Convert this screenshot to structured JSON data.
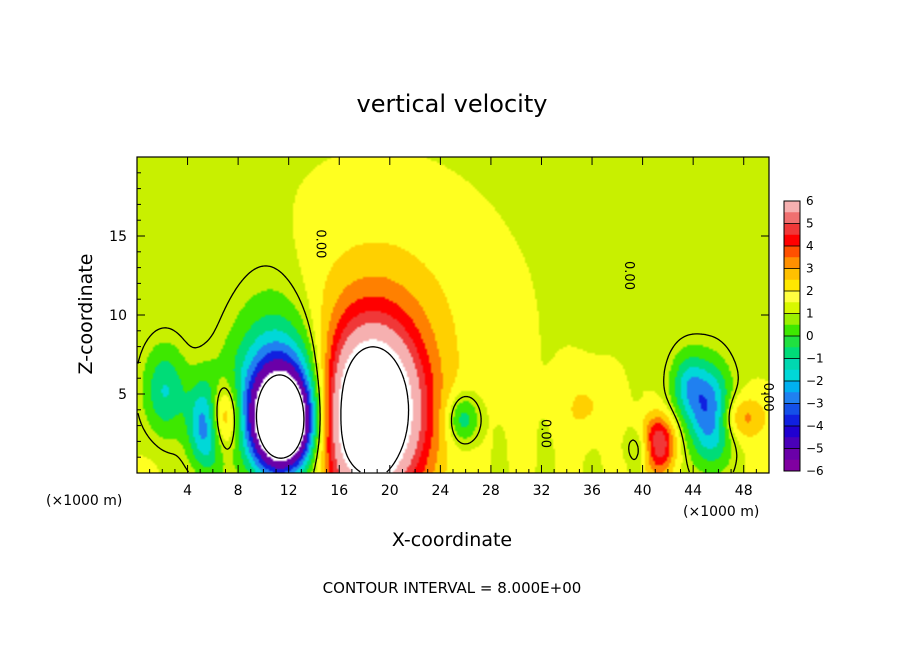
{
  "chart_data": {
    "type": "heatmap",
    "title": "vertical velocity",
    "xlabel": "X-coordinate",
    "ylabel": "Z-coordinate",
    "x_unit_left": "(×1000 m)",
    "x_unit_right": "(×1000 m)",
    "xlim": [
      0,
      50
    ],
    "ylim": [
      0,
      20
    ],
    "x_ticks": [
      4,
      8,
      12,
      16,
      20,
      24,
      28,
      32,
      36,
      40,
      44,
      48
    ],
    "y_ticks": [
      5,
      10,
      15
    ],
    "colorbar": {
      "ticks": [
        6,
        5,
        4,
        3,
        2,
        1,
        0,
        -1,
        -2,
        -3,
        -4,
        -5,
        -6
      ],
      "range": [
        -6,
        6
      ]
    },
    "contour_labels": [
      {
        "text": "0.00",
        "x": 14.2,
        "z": 14.5
      },
      {
        "text": "0.00",
        "x": 38.6,
        "z": 12.5
      },
      {
        "text": "0.00",
        "x": 32.0,
        "z": 2.5
      },
      {
        "text": "0.00",
        "x": 49.6,
        "z": 4.8
      }
    ],
    "features": [
      {
        "kind": "updraft",
        "x": 18.5,
        "z": 3.6,
        "sx": 2.8,
        "sz": 3.8,
        "amp": 12
      },
      {
        "kind": "updraft",
        "x": 19.0,
        "z": 9.5,
        "sx": 5.5,
        "sz": 5.0,
        "amp": 1.6
      },
      {
        "kind": "updraft",
        "x": 6.8,
        "z": 3.5,
        "sx": 0.9,
        "sz": 1.5,
        "amp": 4.5
      },
      {
        "kind": "updraft",
        "x": 41.2,
        "z": 1.8,
        "sx": 0.9,
        "sz": 1.2,
        "amp": 6
      },
      {
        "kind": "updraft",
        "x": 47.8,
        "z": 3.5,
        "sx": 1.4,
        "sz": 1.0,
        "amp": 2.5
      },
      {
        "kind": "updraft",
        "x": 35.5,
        "z": 4.2,
        "sx": 1.5,
        "sz": 1.5,
        "amp": 1.2
      },
      {
        "kind": "downdraft",
        "x": 11.5,
        "z": 4.5,
        "sx": 2.6,
        "sz": 3.2,
        "amp": -7
      },
      {
        "kind": "downdraft",
        "x": 11.6,
        "z": 3.0,
        "sx": 1.6,
        "sz": 2.0,
        "amp": -9
      },
      {
        "kind": "downdraft",
        "x": 11.0,
        "z": 9.0,
        "sx": 2.5,
        "sz": 4.0,
        "amp": -1.0
      },
      {
        "kind": "downdraft",
        "x": 5.5,
        "z": 3.0,
        "sx": 1.0,
        "sz": 2.0,
        "amp": -5
      },
      {
        "kind": "downdraft",
        "x": 2.2,
        "z": 5.2,
        "sx": 1.2,
        "sz": 2.0,
        "amp": -3
      },
      {
        "kind": "downdraft",
        "x": 25.8,
        "z": 3.4,
        "sx": 0.9,
        "sz": 1.1,
        "amp": -3
      },
      {
        "kind": "downdraft",
        "x": 45.4,
        "z": 3.6,
        "sx": 1.2,
        "sz": 2.2,
        "amp": -5
      },
      {
        "kind": "downdraft",
        "x": 43.6,
        "z": 5.5,
        "sx": 1.0,
        "sz": 1.5,
        "amp": -3
      },
      {
        "kind": "downdraft",
        "x": 40.3,
        "z": 1.6,
        "sx": 1.0,
        "sz": 0.8,
        "amp": -2
      }
    ]
  },
  "footer": {
    "contour_interval": "CONTOUR INTERVAL = 8.000E+00"
  }
}
